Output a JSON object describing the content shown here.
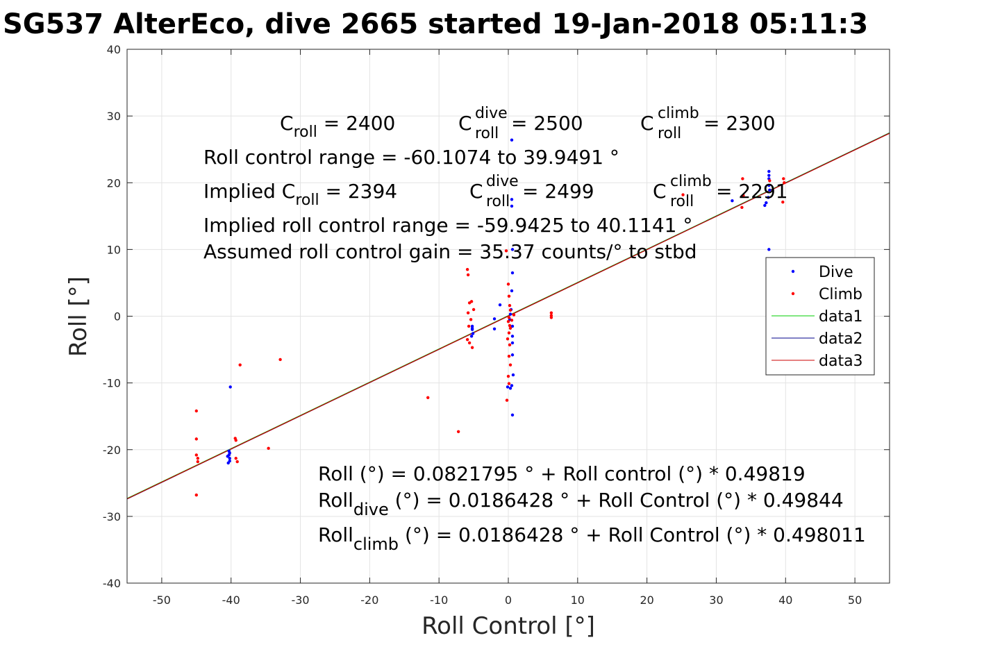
{
  "chart_data": {
    "type": "scatter",
    "title": "SG537 AlterEco, dive 2665 started 19-Jan-2018 05:11:3",
    "xlabel": "Roll Control [°]",
    "ylabel": "Roll [°]",
    "xlim": [
      -55,
      55
    ],
    "ylim": [
      -40,
      40
    ],
    "xticks": [
      -50,
      -40,
      -30,
      -20,
      -10,
      0,
      10,
      20,
      30,
      40,
      50
    ],
    "yticks": [
      -40,
      -30,
      -20,
      -10,
      0,
      10,
      20,
      30,
      40
    ],
    "grid": true,
    "legend_position": "right",
    "colors": {
      "dive": "#0000ff",
      "climb": "#ff0000",
      "data1": "#00cc00",
      "data2": "#00008b",
      "data3": "#cc0000"
    },
    "series": [
      {
        "name": "Dive",
        "kind": "points",
        "color": "#0000ff",
        "points": [
          [
            -40.3,
            -20.2
          ],
          [
            -40.3,
            -20.8
          ],
          [
            -40.2,
            -21.3
          ],
          [
            -40.2,
            -21.7
          ],
          [
            -40.4,
            -22.0
          ],
          [
            -40.1,
            -10.6
          ],
          [
            -40.5,
            -21.0
          ],
          [
            -40.2,
            -20.5
          ],
          [
            -5.2,
            -1.5
          ],
          [
            -5.2,
            -2.0
          ],
          [
            -5.1,
            -2.6
          ],
          [
            -5.3,
            -3.0
          ],
          [
            -5.2,
            -1.8
          ],
          [
            0.5,
            26.4
          ],
          [
            0.5,
            17.5
          ],
          [
            0.5,
            16.5
          ],
          [
            0.6,
            10.0
          ],
          [
            0.6,
            6.5
          ],
          [
            0.5,
            3.8
          ],
          [
            0.4,
            1.0
          ],
          [
            0.3,
            0.3
          ],
          [
            0.2,
            -0.5
          ],
          [
            0.6,
            -1.5
          ],
          [
            0.6,
            -3.0
          ],
          [
            0.6,
            -4.0
          ],
          [
            0.6,
            -5.8
          ],
          [
            0.7,
            -8.8
          ],
          [
            0.3,
            -10.8
          ],
          [
            0.5,
            -10.4
          ],
          [
            0.6,
            -14.8
          ],
          [
            -0.1,
            -10.6
          ],
          [
            -1.2,
            1.7
          ],
          [
            -2.0,
            -1.9
          ],
          [
            -2.0,
            -0.4
          ],
          [
            32.3,
            17.3
          ],
          [
            37.6,
            21.7
          ],
          [
            37.6,
            21.1
          ],
          [
            37.6,
            20.6
          ],
          [
            37.6,
            19.6
          ],
          [
            37.7,
            18.9
          ],
          [
            37.5,
            17.8
          ],
          [
            37.2,
            17.0
          ],
          [
            37.0,
            16.6
          ],
          [
            37.6,
            10.0
          ]
        ]
      },
      {
        "name": "Climb",
        "kind": "points",
        "color": "#ff0000",
        "points": [
          [
            -45,
            -14.2
          ],
          [
            -45,
            -18.4
          ],
          [
            -45,
            -20.8
          ],
          [
            -44.8,
            -21.3
          ],
          [
            -44.8,
            -21.8
          ],
          [
            -45,
            -26.8
          ],
          [
            -39.4,
            -18.3
          ],
          [
            -39.3,
            -18.6
          ],
          [
            -39.3,
            -21.3
          ],
          [
            -39.1,
            -21.8
          ],
          [
            -38.7,
            -7.3
          ],
          [
            -34.6,
            -19.8
          ],
          [
            -32.9,
            -6.5
          ],
          [
            -11.6,
            -12.2
          ],
          [
            -7.2,
            -17.3
          ],
          [
            -5.9,
            7.0
          ],
          [
            -5.8,
            6.2
          ],
          [
            -5.6,
            2.0
          ],
          [
            -5.3,
            2.2
          ],
          [
            -5.8,
            0.5
          ],
          [
            -5.4,
            -0.5
          ],
          [
            -5.7,
            -1.5
          ],
          [
            -5.9,
            -3.5
          ],
          [
            -5.6,
            -4.0
          ],
          [
            -5.2,
            -4.7
          ],
          [
            -5.0,
            1.0
          ],
          [
            -0.3,
            9.8
          ],
          [
            0.0,
            4.8
          ],
          [
            0.1,
            3.0
          ],
          [
            0.2,
            1.6
          ],
          [
            0.3,
            0.9
          ],
          [
            0.1,
            -0.2
          ],
          [
            0.0,
            -0.8
          ],
          [
            0.2,
            -1.4
          ],
          [
            0.3,
            -1.8
          ],
          [
            0.1,
            -2.5
          ],
          [
            -0.1,
            -3.4
          ],
          [
            0.2,
            -4.3
          ],
          [
            0.1,
            -6.0
          ],
          [
            0.3,
            -7.3
          ],
          [
            0.0,
            -9.0
          ],
          [
            0.1,
            -10.1
          ],
          [
            -0.2,
            -12.6
          ],
          [
            0.8,
            0.2
          ],
          [
            0.5,
            -0.6
          ],
          [
            6.2,
            0.5
          ],
          [
            6.2,
            0.1
          ],
          [
            6.2,
            -0.2
          ],
          [
            25.2,
            18.2
          ],
          [
            33.8,
            20.6
          ],
          [
            33.9,
            18.1
          ],
          [
            33.7,
            16.3
          ],
          [
            37.7,
            20.3
          ],
          [
            39.7,
            20.6
          ],
          [
            39.6,
            17.1
          ],
          [
            39.8,
            20.0
          ]
        ]
      },
      {
        "name": "data1",
        "kind": "line",
        "color": "#00cc00",
        "intercept": 0.0821795,
        "slope": 0.49819
      },
      {
        "name": "data2",
        "kind": "line",
        "color": "#00008b",
        "intercept": 0.0186428,
        "slope": 0.49844
      },
      {
        "name": "data3",
        "kind": "line",
        "color": "#cc0000",
        "intercept": 0.0186428,
        "slope": 0.498011
      }
    ],
    "annotations": {
      "c_roll_label": "C",
      "c_roll_sub": "roll",
      "c_roll_value": " = 2400",
      "c_dive_sup": "dive",
      "c_dive_sub": "roll",
      "c_dive_value": " = 2500",
      "c_climb_sup": "climb",
      "c_climb_sub": "roll",
      "c_climb_value": " = 2300",
      "range": "Roll control range = -60.1074 to 39.9491 °",
      "implied_prefix": "Implied C",
      "implied_sub": "roll",
      "implied_value": " = 2394",
      "implied_dive_value": " = 2499",
      "implied_climb_value": " = 2291",
      "implied_range": "Implied roll control range = -59.9425 to 40.1141 °",
      "gain": "Assumed roll control gain = 35.37 counts/° to stbd",
      "fit_all": "Roll (°) = 0.0821795 ° + Roll control (°) * 0.49819",
      "fit_dive_pre": "Roll",
      "fit_dive_sub": "dive",
      "fit_dive_post": " (°) = 0.0186428 ° + Roll Control (°) * 0.49844",
      "fit_climb_pre": "Roll",
      "fit_climb_sub": "climb",
      "fit_climb_post": " (°) = 0.0186428 ° + Roll Control (°) * 0.498011"
    }
  }
}
